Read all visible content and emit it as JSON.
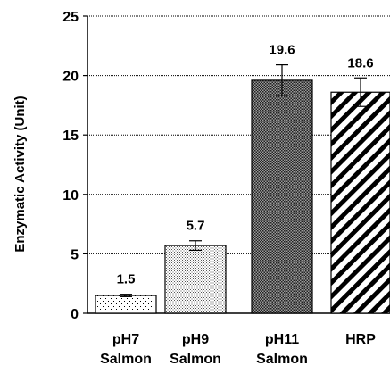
{
  "chart_data": {
    "type": "bar",
    "title": "",
    "xlabel": "",
    "ylabel": "Enzymatic Activity (Unit)",
    "ylim": [
      0,
      25
    ],
    "yticks": [
      0,
      5,
      10,
      15,
      20,
      25
    ],
    "grid": true,
    "categories": [
      [
        "pH7",
        "Salmon"
      ],
      [
        "pH9",
        "Salmon"
      ],
      [
        "pH11",
        "Salmon"
      ],
      [
        "HRP"
      ]
    ],
    "values": [
      1.5,
      5.7,
      19.6,
      18.6
    ],
    "errors": [
      0.1,
      0.4,
      1.3,
      1.2
    ],
    "value_labels": [
      "1.5",
      "5.7",
      "19.6",
      "18.6"
    ],
    "bar_patterns": [
      "sparse-dots",
      "dense-dots",
      "crosshatch",
      "diagonal-stripes"
    ]
  }
}
